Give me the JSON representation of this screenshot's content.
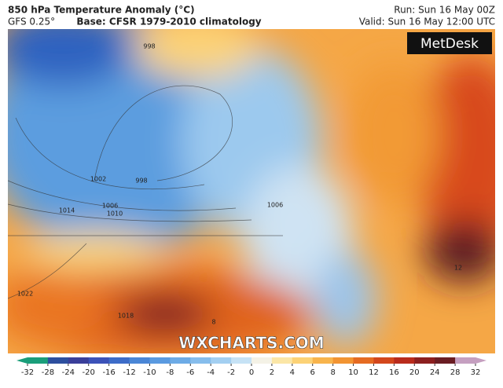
{
  "header": {
    "title": "850 hPa Temperature Anomaly (°C)",
    "model": "GFS 0.25°",
    "base": "Base: CFSR 1979-2010 climatology",
    "run": "Run: Sun 16 May 00Z",
    "valid": "Valid: Sun 16 May 12:00 UTC"
  },
  "map": {
    "logo": "MetDesk",
    "watermark": "WXCHARTS.COM",
    "contour_labels": [
      998,
      1002,
      998,
      1006,
      1010,
      1014,
      1022,
      1018,
      1006,
      12,
      8
    ]
  },
  "colorbar": {
    "ticks": [
      -32,
      -28,
      -24,
      -20,
      -16,
      -12,
      -10,
      -8,
      -6,
      -4,
      -2,
      0,
      2,
      4,
      6,
      8,
      10,
      12,
      16,
      20,
      24,
      28,
      32
    ],
    "colors": [
      "#1a9e7a",
      "#2d4f9e",
      "#3a3f9a",
      "#3c52b8",
      "#3d6cc8",
      "#4a86d6",
      "#5a9ae0",
      "#6dabe6",
      "#86bdec",
      "#a3cff1",
      "#c6e2f5",
      "#f4f2e6",
      "#fbe6a6",
      "#fcd276",
      "#f8b44c",
      "#f29432",
      "#e56b22",
      "#d3471c",
      "#b92b1c",
      "#8c1f1f",
      "#6a1d23",
      "#c59fc0"
    ]
  }
}
